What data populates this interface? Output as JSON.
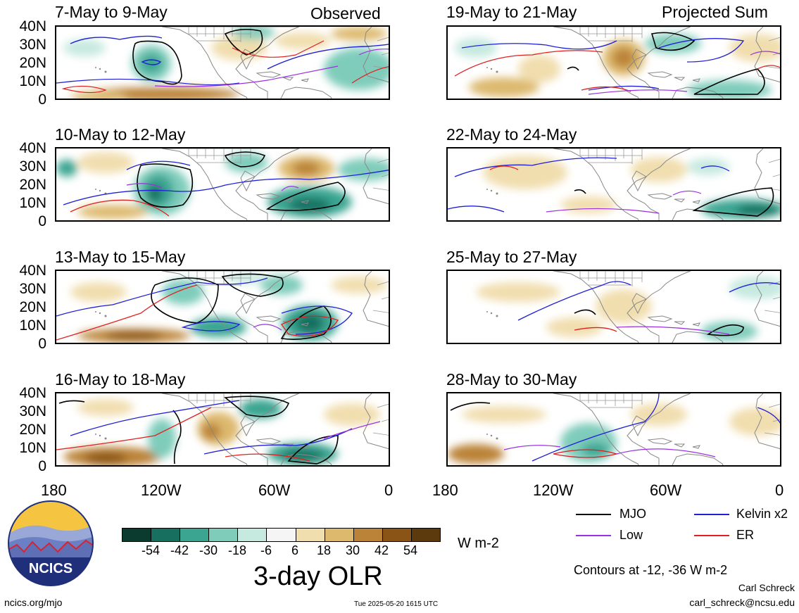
{
  "headers": {
    "left": "Observed",
    "right": "Projected Sum"
  },
  "panels": {
    "left": [
      "7-May to 9-May",
      "10-May to 12-May",
      "13-May to 15-May",
      "16-May to 18-May"
    ],
    "right": [
      "19-May to 21-May",
      "22-May to 24-May",
      "25-May to 27-May",
      "28-May to 30-May"
    ]
  },
  "y_ticks": [
    "40N",
    "30N",
    "20N",
    "10N",
    "0"
  ],
  "x_ticks": [
    "180",
    "120W",
    "60W",
    "0"
  ],
  "legend": {
    "mjo": "MJO",
    "kelvin": "Kelvin x2",
    "low": "Low",
    "er": "ER",
    "colors": {
      "mjo": "#000000",
      "kelvin": "#1f1fd6",
      "low": "#9b30e0",
      "er": "#e02020"
    }
  },
  "colorbar": {
    "ticks": [
      "-54",
      "-42",
      "-30",
      "-18",
      "-6",
      "6",
      "18",
      "30",
      "42",
      "54"
    ],
    "colors": [
      "#0b3b2e",
      "#17705f",
      "#3ba592",
      "#7fccbb",
      "#c6e9e0",
      "#f5f5f5",
      "#f1deaf",
      "#ddb96e",
      "#bb8338",
      "#8a5416",
      "#5c3a0e"
    ],
    "unit": "W m-2",
    "title": "3-day OLR"
  },
  "contour_note": "Contours at -12, -36 W m-2",
  "author": "Carl Schreck",
  "email": "carl_schreck@ncsu.edu",
  "site": "ncics.org/mjo",
  "timestamp": "Tue 2025-05-20 1615 UTC",
  "logo_text": "NCICS"
}
